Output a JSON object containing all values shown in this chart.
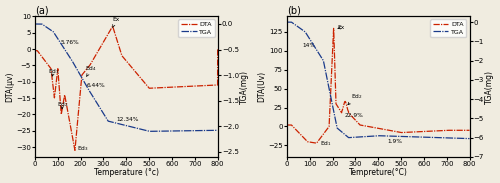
{
  "panel_a": {
    "title": "(a)",
    "xlabel": "Temperature (°c)",
    "ylabel_left": "DTA(μv)",
    "ylabel_right": "TGA(mg)",
    "xlim": [
      0,
      800
    ],
    "ylim_left": [
      -33,
      10
    ],
    "ylim_right": [
      -2.6,
      0.15
    ]
  },
  "panel_b": {
    "title": "(b)",
    "xlabel": "Tempreture(°C)",
    "ylabel_left": "DTA(Uv)",
    "ylabel_right": "TGA(mg)",
    "xlim": [
      0,
      800
    ],
    "ylim_left": [
      -40,
      145
    ],
    "ylim_right": [
      -7,
      0.3
    ]
  },
  "dta_color": "#cc2200",
  "tga_color": "#1a3a8a",
  "fig_bgcolor": "#f0ece0"
}
